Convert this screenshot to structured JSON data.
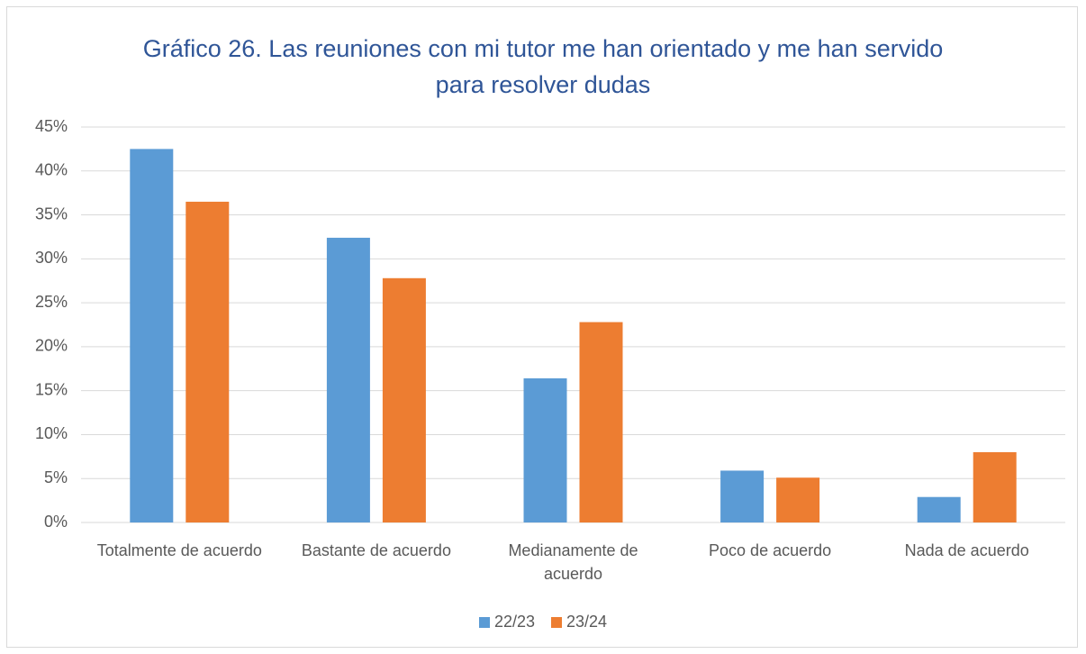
{
  "chart_data": {
    "type": "bar",
    "title": "Gráfico 26. Las reuniones con mi  tutor me han orientado y me han servido para resolver dudas",
    "categories": [
      "Totalmente de acuerdo",
      "Bastante de acuerdo",
      "Medianamente de acuerdo",
      "Poco de acuerdo",
      "Nada de acuerdo"
    ],
    "series": [
      {
        "name": "22/23",
        "color": "#5b9bd5",
        "values": [
          42.5,
          32.4,
          16.4,
          5.9,
          2.9
        ]
      },
      {
        "name": "23/24",
        "color": "#ed7d31",
        "values": [
          36.5,
          27.8,
          22.8,
          5.1,
          8.0
        ]
      }
    ],
    "ylim": [
      0,
      45
    ],
    "yticks": [
      {
        "value": 0,
        "label": "0%"
      },
      {
        "value": 5,
        "label": "5%"
      },
      {
        "value": 10,
        "label": "10%"
      },
      {
        "value": 15,
        "label": "15%"
      },
      {
        "value": 20,
        "label": "20%"
      },
      {
        "value": 25,
        "label": "25%"
      },
      {
        "value": 30,
        "label": "30%"
      },
      {
        "value": 35,
        "label": "35%"
      },
      {
        "value": 40,
        "label": "40%"
      },
      {
        "value": 45,
        "label": "45%"
      }
    ],
    "grid": true,
    "legend": "bottom"
  }
}
